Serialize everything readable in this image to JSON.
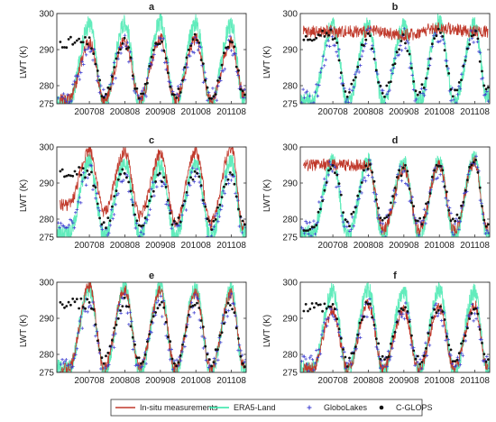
{
  "figure": {
    "legend": [
      {
        "name": "In-situ measurements",
        "kind": "line",
        "color": "#c0392b"
      },
      {
        "name": "ERA5-Land",
        "kind": "line",
        "color": "#2ee6a6"
      },
      {
        "name": "GloboLakes",
        "kind": "marker-plus",
        "color": "#3a3acf"
      },
      {
        "name": "C-GLOPS",
        "kind": "marker-dot",
        "color": "#111111"
      }
    ]
  },
  "chart_data": [
    {
      "type": "line",
      "panel": "a",
      "ylabel": "LWT (K)",
      "ylim": [
        275,
        300
      ],
      "yticks": [
        275,
        280,
        290,
        300
      ],
      "xticks": [
        "200708",
        "200808",
        "200908",
        "201008",
        "201108"
      ],
      "x": [
        "2007-01",
        "2007-08",
        "2008-01",
        "2008-08",
        "2009-01",
        "2009-08",
        "2010-01",
        "2010-08",
        "2011-01",
        "2011-08",
        "2011-12"
      ],
      "series": [
        {
          "name": "In-situ measurements",
          "values": [
            276,
            292,
            276,
            292.5,
            276,
            293,
            276,
            293,
            276,
            292,
            278
          ]
        },
        {
          "name": "ERA5-Land",
          "values": [
            275,
            297,
            275,
            297.5,
            275,
            297.5,
            275,
            297.5,
            275,
            297,
            276
          ]
        },
        {
          "name": "GloboLakes",
          "values": [
            276,
            291,
            276,
            291.5,
            276,
            292,
            276,
            292,
            276,
            291,
            277
          ]
        },
        {
          "name": "C-GLOPS",
          "values": [
            null,
            292,
            277,
            292,
            277,
            293,
            277,
            293,
            277,
            292,
            278
          ]
        }
      ]
    },
    {
      "type": "line",
      "panel": "b",
      "ylabel": "LWT (K)",
      "ylim": [
        275,
        300
      ],
      "yticks": [
        275,
        280,
        290,
        300
      ],
      "xticks": [
        "200708",
        "200808",
        "200908",
        "201008",
        "201108"
      ],
      "x": [
        "2007-01",
        "2007-08",
        "2008-01",
        "2008-08",
        "2009-01",
        "2009-08",
        "2010-01",
        "2010-08",
        "2011-01",
        "2011-08",
        "2011-12"
      ],
      "series": [
        {
          "name": "In-situ measurements",
          "values": [
            null,
            295,
            null,
            295,
            null,
            294,
            null,
            296,
            null,
            295,
            null
          ]
        },
        {
          "name": "ERA5-Land",
          "values": [
            276,
            297,
            275,
            297,
            275,
            296.5,
            275,
            298,
            275,
            297,
            277
          ]
        },
        {
          "name": "GloboLakes",
          "values": [
            277,
            294,
            276,
            293.5,
            276,
            293,
            276,
            295,
            276,
            294,
            277
          ]
        },
        {
          "name": "C-GLOPS",
          "values": [
            null,
            294,
            278,
            294,
            278,
            293,
            278,
            295,
            278,
            294,
            278
          ]
        }
      ]
    },
    {
      "type": "line",
      "panel": "c",
      "ylabel": "LWT (K)",
      "ylim": [
        275,
        300
      ],
      "yticks": [
        275,
        280,
        290,
        300
      ],
      "xticks": [
        "200708",
        "200808",
        "200908",
        "201008",
        "201108"
      ],
      "x": [
        "2007-01",
        "2007-08",
        "2008-01",
        "2008-08",
        "2009-01",
        "2009-08",
        "2010-01",
        "2010-08",
        "2011-01",
        "2011-08",
        "2011-12"
      ],
      "series": [
        {
          "name": "In-situ measurements",
          "values": [
            284,
            299,
            282,
            298.5,
            281,
            298,
            279,
            298.5,
            279,
            300,
            278
          ]
        },
        {
          "name": "ERA5-Land",
          "values": [
            276,
            296,
            275,
            296,
            275,
            295,
            275,
            296,
            275,
            296,
            276
          ]
        },
        {
          "name": "GloboLakes",
          "values": [
            277,
            293,
            276,
            293,
            276,
            292,
            276,
            293,
            276,
            293,
            277
          ]
        },
        {
          "name": "C-GLOPS",
          "values": [
            null,
            293,
            278,
            293,
            278,
            292,
            278,
            293,
            278,
            293,
            278
          ]
        }
      ]
    },
    {
      "type": "line",
      "panel": "d",
      "ylabel": "LWT (K)",
      "ylim": [
        275,
        300
      ],
      "yticks": [
        275,
        280,
        290,
        300
      ],
      "xticks": [
        "200708",
        "200808",
        "200908",
        "201008",
        "201108"
      ],
      "x": [
        "2007-01",
        "2007-08",
        "2008-01",
        "2008-08",
        "2009-01",
        "2009-08",
        "2010-01",
        "2010-08",
        "2011-01",
        "2011-08",
        "2011-12"
      ],
      "series": [
        {
          "name": "In-situ measurements",
          "values": [
            null,
            295,
            null,
            295,
            277,
            294,
            277,
            295,
            277,
            296,
            278
          ]
        },
        {
          "name": "ERA5-Land",
          "values": [
            276,
            296,
            275,
            296,
            275,
            295.5,
            275,
            296,
            275,
            297,
            276
          ]
        },
        {
          "name": "GloboLakes",
          "values": [
            278,
            294,
            277,
            294,
            277,
            293,
            277,
            294,
            277,
            295,
            278
          ]
        },
        {
          "name": "C-GLOPS",
          "values": [
            278,
            295,
            279,
            295,
            279,
            294,
            279,
            295,
            279,
            296,
            279
          ]
        }
      ]
    },
    {
      "type": "line",
      "panel": "e",
      "ylabel": "LWT (K)",
      "ylim": [
        275,
        300
      ],
      "yticks": [
        275,
        280,
        290,
        300
      ],
      "xticks": [
        "200708",
        "200808",
        "200908",
        "201008",
        "201108"
      ],
      "x": [
        "2007-01",
        "2007-08",
        "2008-01",
        "2008-08",
        "2009-01",
        "2009-08",
        "2010-01",
        "2010-08",
        "2011-01",
        "2011-08",
        "2011-12"
      ],
      "series": [
        {
          "name": "In-situ measurements",
          "values": [
            276,
            299,
            276,
            298,
            276,
            297.5,
            276,
            297,
            276,
            297,
            277
          ]
        },
        {
          "name": "ERA5-Land",
          "values": [
            276,
            298,
            275,
            298.5,
            275,
            298.5,
            275,
            298.5,
            275,
            298,
            276
          ]
        },
        {
          "name": "GloboLakes",
          "values": [
            277,
            294,
            276,
            294,
            276,
            294,
            276,
            294,
            276,
            294,
            277
          ]
        },
        {
          "name": "C-GLOPS",
          "values": [
            null,
            294,
            278,
            294.5,
            278,
            294,
            278,
            294.5,
            278,
            294,
            278
          ]
        }
      ]
    },
    {
      "type": "line",
      "panel": "f",
      "ylabel": "LWT (K)",
      "ylim": [
        275,
        300
      ],
      "yticks": [
        275,
        280,
        290,
        300
      ],
      "xticks": [
        "200708",
        "200808",
        "200908",
        "201008",
        "201108"
      ],
      "x": [
        "2007-01",
        "2007-08",
        "2008-01",
        "2008-08",
        "2009-01",
        "2009-08",
        "2010-01",
        "2010-08",
        "2011-01",
        "2011-08",
        "2011-12"
      ],
      "series": [
        {
          "name": "In-situ measurements",
          "values": [
            276,
            292,
            276,
            294,
            276,
            292,
            276,
            293,
            276,
            293.5,
            277
          ]
        },
        {
          "name": "ERA5-Land",
          "values": [
            276,
            297.5,
            275,
            298,
            275,
            297.5,
            275,
            298,
            275,
            297.5,
            276
          ]
        },
        {
          "name": "GloboLakes",
          "values": [
            277,
            292,
            276,
            293,
            276,
            292,
            276,
            293,
            276,
            292,
            277
          ]
        },
        {
          "name": "C-GLOPS",
          "values": [
            null,
            293,
            278,
            293.5,
            278,
            293,
            278,
            293.5,
            278,
            293,
            278
          ]
        }
      ]
    }
  ]
}
